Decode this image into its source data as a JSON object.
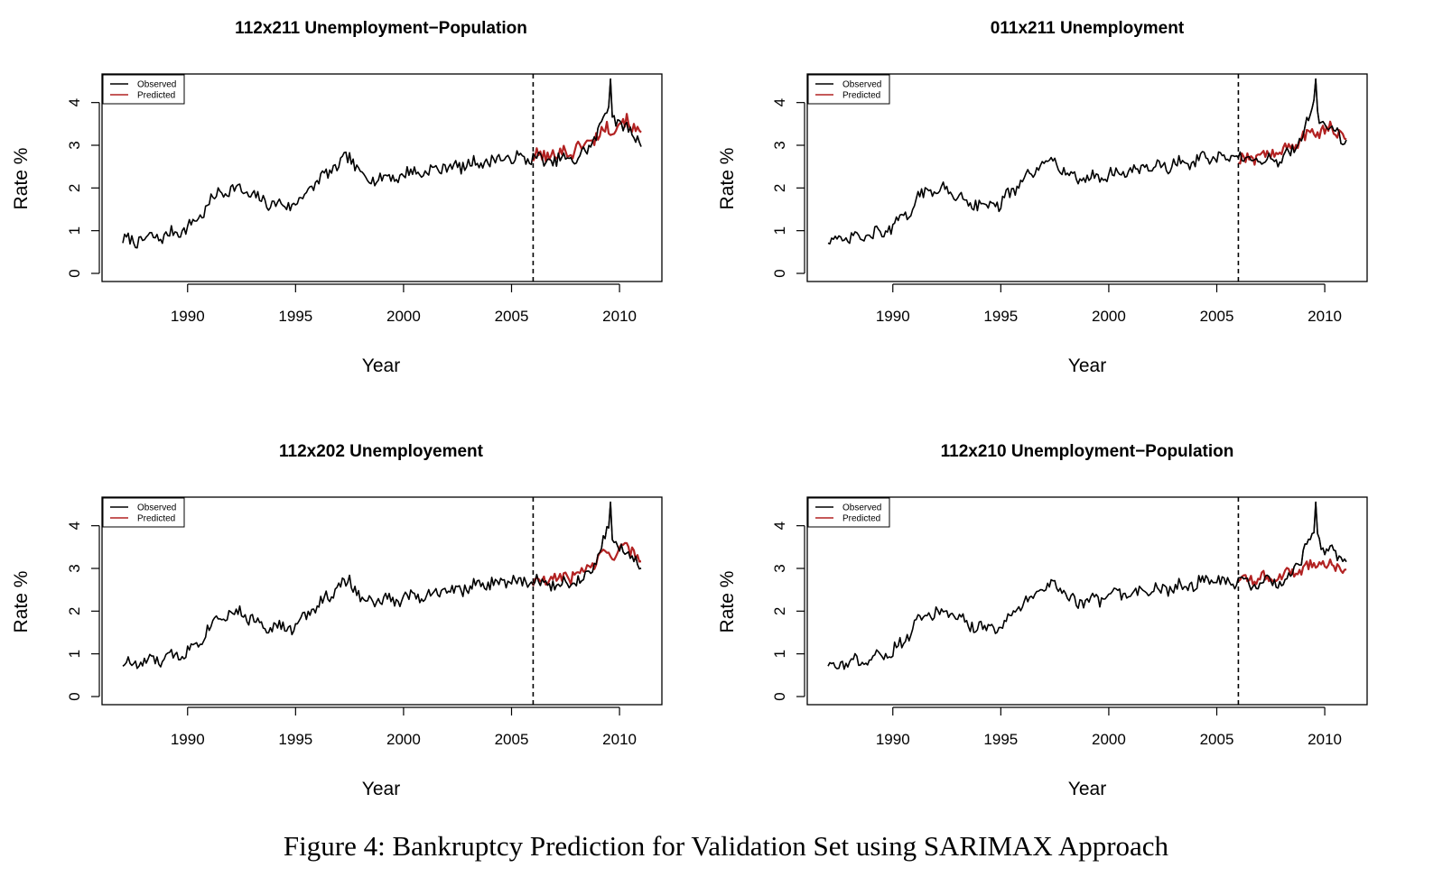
{
  "caption": "Figure 4: Bankruptcy Prediction for Validation Set using SARIMAX Approach",
  "colors": {
    "observed": "#000000",
    "predicted": "#b22222"
  },
  "chart_data": [
    {
      "type": "line",
      "title": "112x211 Unemployment−Population",
      "xlabel": "Year",
      "ylabel": "Rate %",
      "xlim": [
        1987,
        2011
      ],
      "ylim": [
        0,
        4.5
      ],
      "xticks": [
        1990,
        1995,
        2000,
        2005,
        2010
      ],
      "yticks": [
        0,
        1,
        2,
        3,
        4
      ],
      "vline": 2006,
      "legend": {
        "position": "top-left",
        "entries": [
          "Observed",
          "Predicted"
        ]
      },
      "observed_points": [
        [
          1987.0,
          0.78
        ],
        [
          1987.5,
          0.75
        ],
        [
          1988.0,
          0.8
        ],
        [
          1988.5,
          0.84
        ],
        [
          1989.0,
          0.88
        ],
        [
          1989.5,
          0.97
        ],
        [
          1990.0,
          1.08
        ],
        [
          1990.5,
          1.28
        ],
        [
          1991.0,
          1.65
        ],
        [
          1991.5,
          1.9
        ],
        [
          1992.0,
          1.98
        ],
        [
          1992.5,
          1.95
        ],
        [
          1993.0,
          1.8
        ],
        [
          1993.5,
          1.7
        ],
        [
          1994.0,
          1.62
        ],
        [
          1994.5,
          1.6
        ],
        [
          1995.0,
          1.62
        ],
        [
          1995.5,
          1.9
        ],
        [
          1996.0,
          2.15
        ],
        [
          1996.5,
          2.35
        ],
        [
          1997.0,
          2.55
        ],
        [
          1997.5,
          2.72
        ],
        [
          1998.0,
          2.35
        ],
        [
          1998.5,
          2.2
        ],
        [
          1999.0,
          2.25
        ],
        [
          1999.5,
          2.25
        ],
        [
          2000.0,
          2.3
        ],
        [
          2000.5,
          2.4
        ],
        [
          2001.0,
          2.35
        ],
        [
          2001.5,
          2.45
        ],
        [
          2002.0,
          2.5
        ],
        [
          2002.5,
          2.5
        ],
        [
          2003.0,
          2.55
        ],
        [
          2003.5,
          2.6
        ],
        [
          2004.0,
          2.62
        ],
        [
          2004.5,
          2.7
        ],
        [
          2005.0,
          2.68
        ],
        [
          2005.5,
          2.7
        ],
        [
          2006.0,
          2.7
        ],
        [
          2006.5,
          2.65
        ],
        [
          2007.0,
          2.6
        ],
        [
          2007.5,
          2.7
        ],
        [
          2008.0,
          2.65
        ],
        [
          2008.5,
          2.9
        ],
        [
          2009.0,
          3.3
        ],
        [
          2009.5,
          3.95
        ],
        [
          2010.0,
          3.45
        ],
        [
          2010.5,
          3.35
        ],
        [
          2011.0,
          3.1
        ]
      ],
      "observed_noise": 0.17,
      "observed_spike": [
        2009.6,
        4.55
      ],
      "predicted_points": [
        [
          2006.0,
          2.7
        ],
        [
          2006.5,
          2.75
        ],
        [
          2007.0,
          2.8
        ],
        [
          2007.5,
          2.85
        ],
        [
          2008.0,
          2.9
        ],
        [
          2008.5,
          3.05
        ],
        [
          2009.0,
          3.25
        ],
        [
          2009.5,
          3.4
        ],
        [
          2010.0,
          3.55
        ],
        [
          2010.5,
          3.5
        ],
        [
          2011.0,
          3.3
        ]
      ],
      "predicted_noise": 0.2
    },
    {
      "type": "line",
      "title": "011x211 Unemployment",
      "xlabel": "Year",
      "ylabel": "Rate %",
      "xlim": [
        1987,
        2011
      ],
      "ylim": [
        0,
        4.5
      ],
      "xticks": [
        1990,
        1995,
        2000,
        2005,
        2010
      ],
      "yticks": [
        0,
        1,
        2,
        3,
        4
      ],
      "vline": 2006,
      "legend": {
        "position": "top-left",
        "entries": [
          "Observed",
          "Predicted"
        ]
      },
      "observed_points": [
        [
          1987.0,
          0.78
        ],
        [
          1987.5,
          0.75
        ],
        [
          1988.0,
          0.8
        ],
        [
          1988.5,
          0.84
        ],
        [
          1989.0,
          0.88
        ],
        [
          1989.5,
          0.97
        ],
        [
          1990.0,
          1.08
        ],
        [
          1990.5,
          1.28
        ],
        [
          1991.0,
          1.65
        ],
        [
          1991.5,
          1.9
        ],
        [
          1992.0,
          1.98
        ],
        [
          1992.5,
          1.95
        ],
        [
          1993.0,
          1.8
        ],
        [
          1993.5,
          1.7
        ],
        [
          1994.0,
          1.62
        ],
        [
          1994.5,
          1.6
        ],
        [
          1995.0,
          1.62
        ],
        [
          1995.5,
          1.9
        ],
        [
          1996.0,
          2.15
        ],
        [
          1996.5,
          2.35
        ],
        [
          1997.0,
          2.55
        ],
        [
          1997.5,
          2.72
        ],
        [
          1998.0,
          2.35
        ],
        [
          1998.5,
          2.2
        ],
        [
          1999.0,
          2.25
        ],
        [
          1999.5,
          2.25
        ],
        [
          2000.0,
          2.3
        ],
        [
          2000.5,
          2.4
        ],
        [
          2001.0,
          2.35
        ],
        [
          2001.5,
          2.45
        ],
        [
          2002.0,
          2.5
        ],
        [
          2002.5,
          2.5
        ],
        [
          2003.0,
          2.55
        ],
        [
          2003.5,
          2.6
        ],
        [
          2004.0,
          2.62
        ],
        [
          2004.5,
          2.7
        ],
        [
          2005.0,
          2.68
        ],
        [
          2005.5,
          2.7
        ],
        [
          2006.0,
          2.7
        ],
        [
          2006.5,
          2.65
        ],
        [
          2007.0,
          2.6
        ],
        [
          2007.5,
          2.7
        ],
        [
          2008.0,
          2.65
        ],
        [
          2008.5,
          2.9
        ],
        [
          2009.0,
          3.3
        ],
        [
          2009.5,
          3.95
        ],
        [
          2010.0,
          3.45
        ],
        [
          2010.5,
          3.35
        ],
        [
          2011.0,
          3.1
        ]
      ],
      "observed_noise": 0.17,
      "observed_spike": [
        2009.6,
        4.55
      ],
      "predicted_points": [
        [
          2006.0,
          2.65
        ],
        [
          2006.5,
          2.7
        ],
        [
          2007.0,
          2.75
        ],
        [
          2007.5,
          2.8
        ],
        [
          2008.0,
          2.85
        ],
        [
          2008.5,
          2.95
        ],
        [
          2009.0,
          3.2
        ],
        [
          2009.5,
          3.3
        ],
        [
          2010.0,
          3.4
        ],
        [
          2010.5,
          3.35
        ],
        [
          2011.0,
          3.2
        ]
      ],
      "predicted_noise": 0.17
    },
    {
      "type": "line",
      "title": "112x202 Unemployement",
      "xlabel": "Year",
      "ylabel": "Rate %",
      "xlim": [
        1987,
        2011
      ],
      "ylim": [
        0,
        4.5
      ],
      "xticks": [
        1990,
        1995,
        2000,
        2005,
        2010
      ],
      "yticks": [
        0,
        1,
        2,
        3,
        4
      ],
      "vline": 2006,
      "legend": {
        "position": "top-left",
        "entries": [
          "Observed",
          "Predicted"
        ]
      },
      "observed_points": [
        [
          1987.0,
          0.78
        ],
        [
          1987.5,
          0.75
        ],
        [
          1988.0,
          0.8
        ],
        [
          1988.5,
          0.84
        ],
        [
          1989.0,
          0.88
        ],
        [
          1989.5,
          0.97
        ],
        [
          1990.0,
          1.08
        ],
        [
          1990.5,
          1.28
        ],
        [
          1991.0,
          1.65
        ],
        [
          1991.5,
          1.9
        ],
        [
          1992.0,
          1.98
        ],
        [
          1992.5,
          1.95
        ],
        [
          1993.0,
          1.8
        ],
        [
          1993.5,
          1.7
        ],
        [
          1994.0,
          1.62
        ],
        [
          1994.5,
          1.6
        ],
        [
          1995.0,
          1.62
        ],
        [
          1995.5,
          1.9
        ],
        [
          1996.0,
          2.15
        ],
        [
          1996.5,
          2.35
        ],
        [
          1997.0,
          2.55
        ],
        [
          1997.5,
          2.72
        ],
        [
          1998.0,
          2.35
        ],
        [
          1998.5,
          2.2
        ],
        [
          1999.0,
          2.25
        ],
        [
          1999.5,
          2.25
        ],
        [
          2000.0,
          2.3
        ],
        [
          2000.5,
          2.4
        ],
        [
          2001.0,
          2.35
        ],
        [
          2001.5,
          2.45
        ],
        [
          2002.0,
          2.5
        ],
        [
          2002.5,
          2.5
        ],
        [
          2003.0,
          2.55
        ],
        [
          2003.5,
          2.6
        ],
        [
          2004.0,
          2.62
        ],
        [
          2004.5,
          2.7
        ],
        [
          2005.0,
          2.68
        ],
        [
          2005.5,
          2.7
        ],
        [
          2006.0,
          2.7
        ],
        [
          2006.5,
          2.65
        ],
        [
          2007.0,
          2.6
        ],
        [
          2007.5,
          2.7
        ],
        [
          2008.0,
          2.65
        ],
        [
          2008.5,
          2.9
        ],
        [
          2009.0,
          3.3
        ],
        [
          2009.5,
          3.95
        ],
        [
          2010.0,
          3.45
        ],
        [
          2010.5,
          3.35
        ],
        [
          2011.0,
          3.1
        ]
      ],
      "observed_noise": 0.17,
      "observed_spike": [
        2009.6,
        4.55
      ],
      "predicted_points": [
        [
          2006.0,
          2.65
        ],
        [
          2006.5,
          2.7
        ],
        [
          2007.0,
          2.75
        ],
        [
          2007.5,
          2.8
        ],
        [
          2008.0,
          2.85
        ],
        [
          2008.5,
          3.0
        ],
        [
          2009.0,
          3.2
        ],
        [
          2009.5,
          3.35
        ],
        [
          2010.0,
          3.45
        ],
        [
          2010.5,
          3.4
        ],
        [
          2011.0,
          3.3
        ]
      ],
      "predicted_noise": 0.18
    },
    {
      "type": "line",
      "title": "112x210 Unemployment−Population",
      "xlabel": "Year",
      "ylabel": "Rate %",
      "xlim": [
        1987,
        2011
      ],
      "ylim": [
        0,
        4.5
      ],
      "xticks": [
        1990,
        1995,
        2000,
        2005,
        2010
      ],
      "yticks": [
        0,
        1,
        2,
        3,
        4
      ],
      "vline": 2006,
      "legend": {
        "position": "top-left",
        "entries": [
          "Observed",
          "Predicted"
        ]
      },
      "observed_points": [
        [
          1987.0,
          0.78
        ],
        [
          1987.5,
          0.75
        ],
        [
          1988.0,
          0.8
        ],
        [
          1988.5,
          0.84
        ],
        [
          1989.0,
          0.88
        ],
        [
          1989.5,
          0.97
        ],
        [
          1990.0,
          1.08
        ],
        [
          1990.5,
          1.28
        ],
        [
          1991.0,
          1.65
        ],
        [
          1991.5,
          1.9
        ],
        [
          1992.0,
          1.98
        ],
        [
          1992.5,
          1.95
        ],
        [
          1993.0,
          1.8
        ],
        [
          1993.5,
          1.7
        ],
        [
          1994.0,
          1.62
        ],
        [
          1994.5,
          1.6
        ],
        [
          1995.0,
          1.62
        ],
        [
          1995.5,
          1.9
        ],
        [
          1996.0,
          2.15
        ],
        [
          1996.5,
          2.35
        ],
        [
          1997.0,
          2.55
        ],
        [
          1997.5,
          2.72
        ],
        [
          1998.0,
          2.35
        ],
        [
          1998.5,
          2.2
        ],
        [
          1999.0,
          2.25
        ],
        [
          1999.5,
          2.25
        ],
        [
          2000.0,
          2.3
        ],
        [
          2000.5,
          2.4
        ],
        [
          2001.0,
          2.35
        ],
        [
          2001.5,
          2.45
        ],
        [
          2002.0,
          2.5
        ],
        [
          2002.5,
          2.5
        ],
        [
          2003.0,
          2.55
        ],
        [
          2003.5,
          2.6
        ],
        [
          2004.0,
          2.62
        ],
        [
          2004.5,
          2.7
        ],
        [
          2005.0,
          2.68
        ],
        [
          2005.5,
          2.7
        ],
        [
          2006.0,
          2.7
        ],
        [
          2006.5,
          2.65
        ],
        [
          2007.0,
          2.6
        ],
        [
          2007.5,
          2.7
        ],
        [
          2008.0,
          2.65
        ],
        [
          2008.5,
          2.9
        ],
        [
          2009.0,
          3.3
        ],
        [
          2009.5,
          3.95
        ],
        [
          2010.0,
          3.45
        ],
        [
          2010.5,
          3.35
        ],
        [
          2011.0,
          3.1
        ]
      ],
      "observed_noise": 0.17,
      "observed_spike": [
        2009.6,
        4.55
      ],
      "predicted_points": [
        [
          2006.0,
          2.75
        ],
        [
          2006.5,
          2.75
        ],
        [
          2007.0,
          2.8
        ],
        [
          2007.5,
          2.75
        ],
        [
          2008.0,
          2.85
        ],
        [
          2008.5,
          2.9
        ],
        [
          2009.0,
          3.0
        ],
        [
          2009.5,
          3.05
        ],
        [
          2010.0,
          3.1
        ],
        [
          2010.5,
          3.05
        ],
        [
          2011.0,
          2.9
        ]
      ],
      "predicted_noise": 0.16
    }
  ]
}
